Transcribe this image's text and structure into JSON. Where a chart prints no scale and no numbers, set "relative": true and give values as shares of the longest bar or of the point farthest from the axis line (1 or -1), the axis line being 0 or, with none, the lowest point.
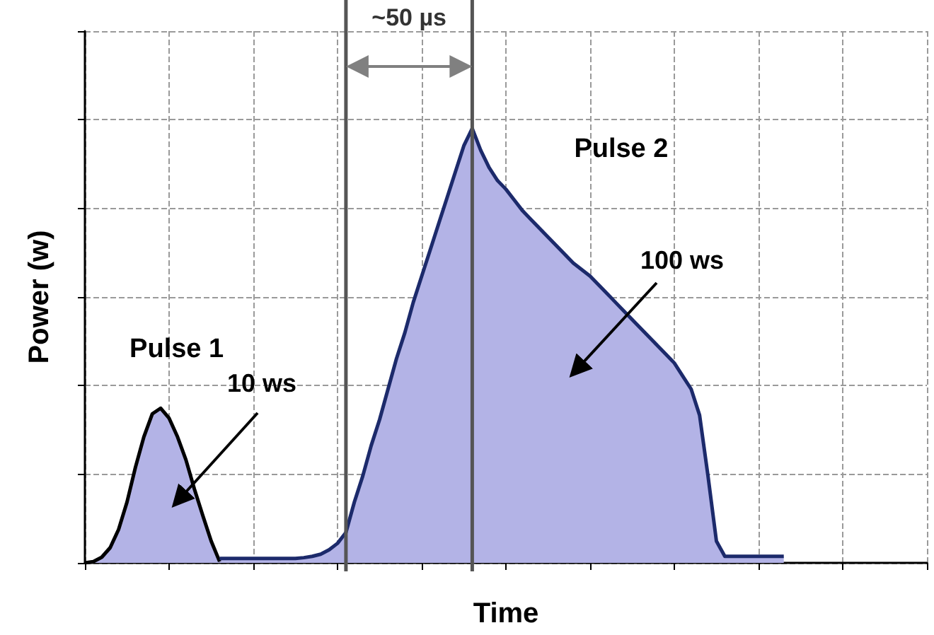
{
  "chart_data": {
    "type": "area",
    "relative": true,
    "xlabel": "Time",
    "ylabel": "Power (w)",
    "grid": true,
    "categories": [
      null,
      null,
      null,
      null,
      null,
      null,
      null,
      null,
      null,
      null,
      null,
      null,
      null,
      null,
      null,
      null,
      null,
      null,
      null,
      null,
      null,
      null,
      null,
      null,
      null,
      null,
      null,
      null,
      null,
      null,
      null,
      null,
      null,
      null,
      null,
      null,
      null,
      null,
      null,
      null,
      null,
      null,
      null,
      null,
      null,
      null,
      null,
      null,
      null,
      null,
      null,
      null,
      null,
      null,
      null,
      null,
      null,
      null,
      null,
      null,
      null,
      null,
      null,
      null,
      null,
      null,
      null,
      null,
      null,
      null,
      null,
      null,
      null,
      null,
      null,
      null,
      null,
      null,
      null,
      null,
      null,
      null,
      null,
      null,
      null,
      null,
      null,
      null,
      null,
      null,
      null,
      null,
      null,
      null,
      null,
      null,
      null,
      null,
      null,
      null,
      null
    ],
    "series": [
      {
        "name": "Pulse 1",
        "color": "#000000",
        "values": [
          0,
          0.003,
          0.013,
          0.035,
          0.077,
          0.14,
          0.22,
          0.29,
          0.343,
          0.356,
          0.333,
          0.29,
          0.237,
          0.17,
          0.109,
          0.05,
          0.003,
          null,
          null,
          null,
          null,
          null,
          null,
          null,
          null,
          null,
          null,
          null,
          null,
          null,
          null,
          null,
          null,
          null,
          null,
          null,
          null,
          null,
          null,
          null,
          null,
          null,
          null,
          null,
          null,
          null,
          null,
          null,
          null,
          null,
          null,
          null,
          null,
          null,
          null,
          null,
          null,
          null,
          null,
          null,
          null,
          null,
          null,
          null,
          null,
          null,
          null,
          null,
          null,
          null,
          null,
          null,
          null,
          null,
          null,
          null,
          null,
          null,
          null,
          null,
          null,
          null,
          null,
          null,
          null,
          null,
          null,
          null,
          null,
          null,
          null,
          null,
          null,
          null,
          null,
          null,
          null,
          null,
          null,
          null,
          null
        ]
      },
      {
        "name": "Pulse 2",
        "color": "#1c2a6b",
        "values": [
          null,
          null,
          null,
          null,
          null,
          null,
          null,
          null,
          null,
          null,
          null,
          null,
          null,
          null,
          null,
          null,
          0.01,
          0.01,
          0.01,
          0.01,
          0.01,
          0.01,
          0.01,
          0.01,
          0.01,
          0.01,
          0.012,
          0.015,
          0.02,
          0.03,
          0.045,
          0.07,
          0.14,
          0.2,
          0.27,
          0.33,
          0.4,
          0.47,
          0.53,
          0.6,
          0.66,
          0.72,
          0.78,
          0.84,
          0.9,
          0.96,
          1,
          0.95,
          0.91,
          0.88,
          0.86,
          0.835,
          0.81,
          0.79,
          0.77,
          0.75,
          0.73,
          0.71,
          0.69,
          0.675,
          0.66,
          0.64,
          0.62,
          0.6,
          0.58,
          0.56,
          0.54,
          0.52,
          0.5,
          0.48,
          0.46,
          0.43,
          0.4,
          0.34,
          0.2,
          0.05,
          0.015,
          0.015,
          0.015,
          0.015,
          0.015,
          0.015,
          0.015,
          0.015,
          null,
          null,
          null,
          null,
          null,
          null,
          null,
          null,
          null,
          null,
          null,
          null,
          null,
          null,
          null,
          null,
          null
        ]
      }
    ],
    "annotations": [
      "~50 µs",
      "10 ws",
      "100 ws"
    ]
  }
}
